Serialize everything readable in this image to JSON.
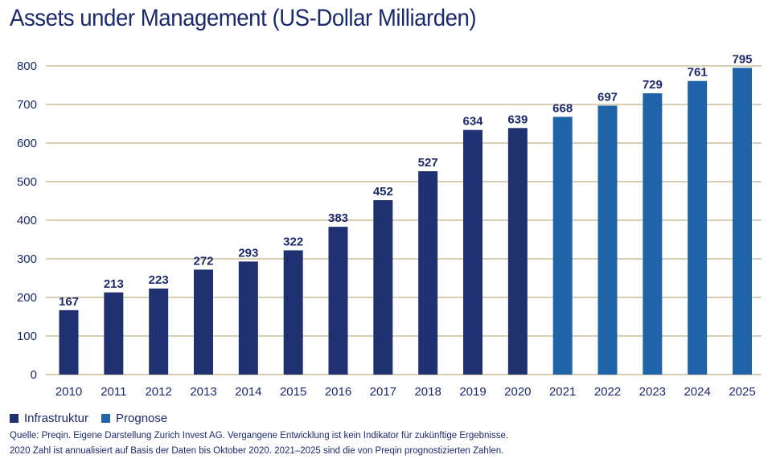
{
  "chart_data": {
    "type": "bar",
    "title": "Assets under Management (US-Dollar Milliarden)",
    "xlabel": "",
    "ylabel": "",
    "ylim": [
      0,
      800
    ],
    "yticks": [
      0,
      100,
      200,
      300,
      400,
      500,
      600,
      700,
      800
    ],
    "grid": true,
    "categories": [
      "2010",
      "2011",
      "2012",
      "2013",
      "2014",
      "2015",
      "2016",
      "2017",
      "2018",
      "2019",
      "2020",
      "2021",
      "2022",
      "2023",
      "2024",
      "2025"
    ],
    "series": [
      {
        "name": "Infrastruktur",
        "color": "#1f3170",
        "values": [
          167,
          213,
          223,
          272,
          293,
          322,
          383,
          452,
          527,
          634,
          639,
          null,
          null,
          null,
          null,
          null
        ]
      },
      {
        "name": "Prognose",
        "color": "#1f63a8",
        "values": [
          null,
          null,
          null,
          null,
          null,
          null,
          null,
          null,
          null,
          null,
          null,
          668,
          697,
          729,
          761,
          795
        ]
      }
    ],
    "legend_position": "bottom-left",
    "gridline_color": "#d9cfb5"
  },
  "legend": [
    {
      "label": "Infrastruktur",
      "color": "#1f3170"
    },
    {
      "label": "Prognose",
      "color": "#1f63a8"
    }
  ],
  "notes": [
    "Quelle: Preqin. Eigene Darstellung Zurich Invest AG. Vergangene Entwicklung ist kein Indikator für zukünftige Ergebnisse.",
    "2020 Zahl ist annualisiert auf Basis der Daten bis Oktober 2020. 2021–2025 sind die von Preqin prognostizierten Zahlen."
  ]
}
